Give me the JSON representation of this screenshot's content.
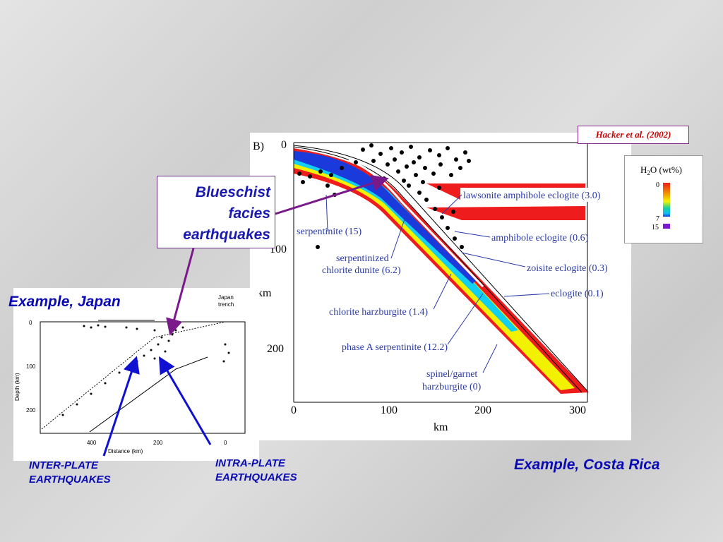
{
  "citation": "Hacker et al. (2002)",
  "callout": {
    "line1": "Blueschist",
    "line2": "facies",
    "line3": "earthquakes"
  },
  "captions": {
    "japan": "Example, Japan",
    "costa_rica": "Example, Costa Rica",
    "inter_plate_1": "INTER-PLATE",
    "inter_plate_2": "EARTHQUAKES",
    "intra_plate_1": "INTRA-PLATE",
    "intra_plate_2": "EARTHQUAKES"
  },
  "costa_rica_figure": {
    "panel_label": "B)",
    "x_axis_label": "km",
    "y_axis_label": "km",
    "x_ticks": [
      "0",
      "100",
      "200",
      "300"
    ],
    "y_ticks": [
      "0",
      "100",
      "200"
    ],
    "labels": {
      "lawsonite": "lawsonite amphibole eclogite (3.0)",
      "serpentinite": "serpentinite (15)",
      "amphibole": "amphibole eclogite (0.6)",
      "serpentinized1": "serpentinized",
      "serpentinized2": "chlorite dunite (6.2)",
      "zoisite": "zoisite eclogite (0.3)",
      "eclogite": "eclogite (0.1)",
      "chlorite": "chlorite harzburgite (1.4)",
      "phaseA": "phase A serpentinite (12.2)",
      "spinel1": "spinel/garnet",
      "spinel2": "harzburgite (0)"
    },
    "legend": {
      "title_h": "H",
      "title_sub": "2",
      "title_rest": "O (wt%)",
      "tick_0": "0",
      "tick_7": "7",
      "tick_15": "15"
    }
  },
  "japan_figure": {
    "trench_label_1": "Japan",
    "trench_label_2": "trench",
    "y_axis_label": "Depth (km)",
    "x_axis_label": "Distance (km)",
    "y_ticks": [
      "0",
      "100",
      "200"
    ],
    "x_ticks": [
      "400",
      "200",
      "0"
    ]
  },
  "colors": {
    "red": "#ee1c1c",
    "yellow": "#f2f200",
    "cyan": "#14d0f0",
    "blue": "#1a3adc",
    "purple": "#7a1a8a",
    "arrow_blue": "#1010d0"
  }
}
